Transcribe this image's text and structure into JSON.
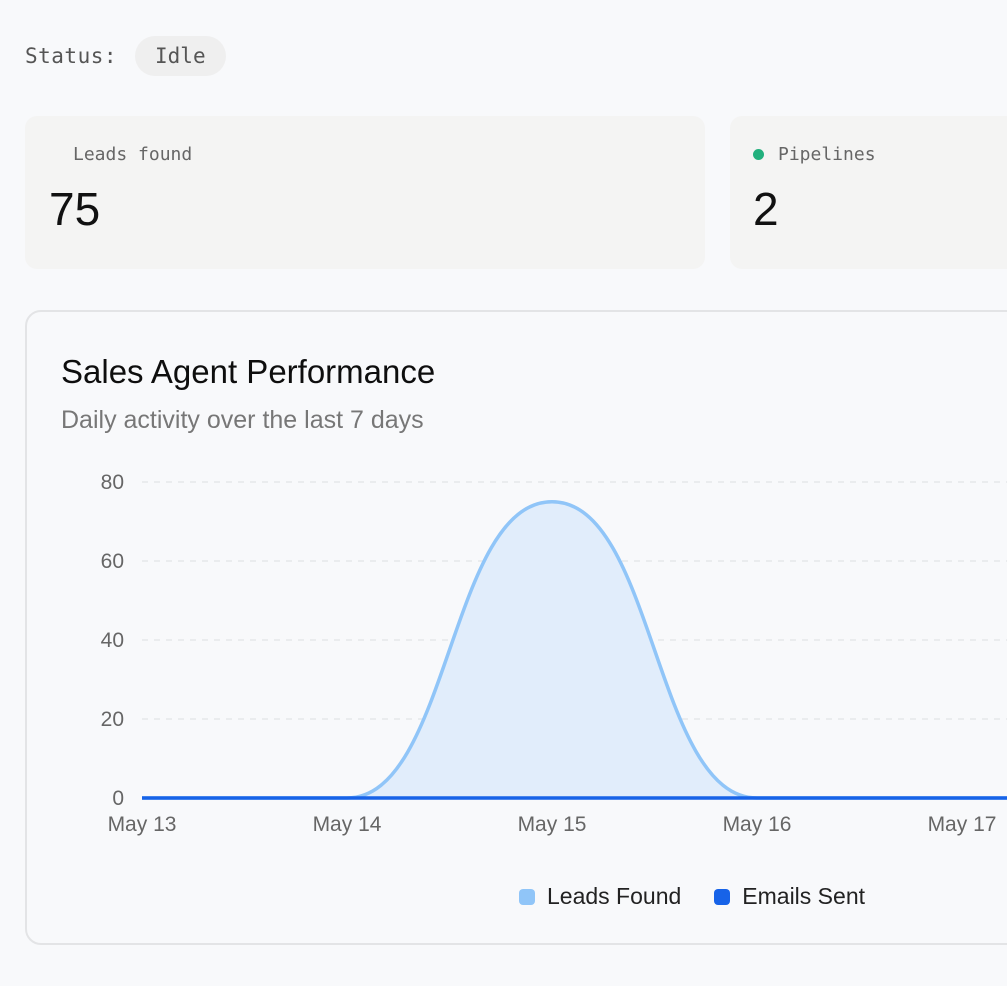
{
  "status": {
    "label": "Status:",
    "value": "Idle"
  },
  "stats": {
    "leads": {
      "title": "Leads found",
      "value": "75"
    },
    "pipelines": {
      "title": "Pipelines",
      "value": "2",
      "dot_color": "#22b07d"
    }
  },
  "chart": {
    "title": "Sales Agent Performance",
    "subtitle": "Daily activity over the last 7 days"
  },
  "chart_data": {
    "type": "area",
    "title": "Sales Agent Performance",
    "subtitle": "Daily activity over the last 7 days",
    "x": [
      "May 13",
      "May 14",
      "May 15",
      "May 16",
      "May 17"
    ],
    "ylim": [
      0,
      80
    ],
    "yticks": [
      0,
      20,
      40,
      60,
      80
    ],
    "grid": true,
    "legend_position": "bottom",
    "series": [
      {
        "name": "Leads Found",
        "values": [
          0,
          0,
          75,
          0,
          0
        ],
        "color": "#90c5f8",
        "fill": "#e1edfb"
      },
      {
        "name": "Emails Sent",
        "values": [
          0,
          0,
          0,
          0,
          0
        ],
        "color": "#1763e8"
      }
    ]
  }
}
